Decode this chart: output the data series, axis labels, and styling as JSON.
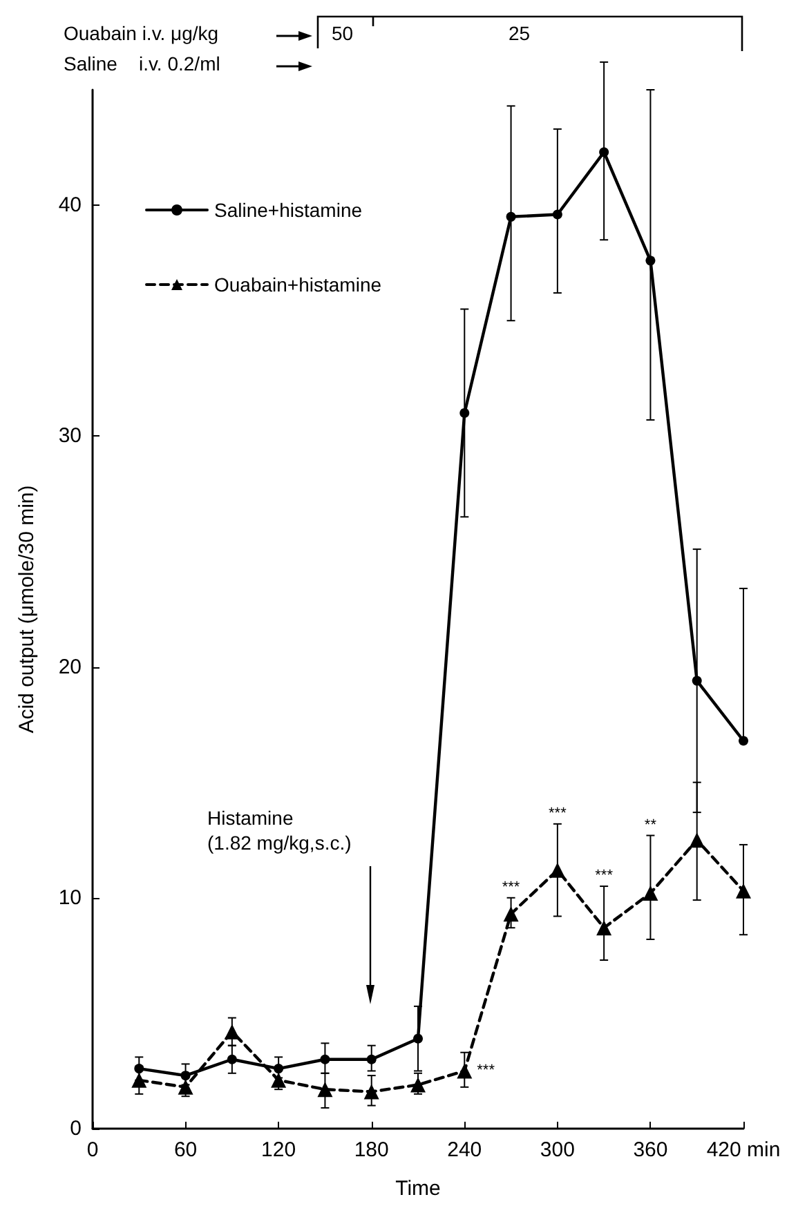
{
  "chart_data": {
    "type": "line",
    "xlabel": "Time",
    "ylabel": "Acid output (μmole/30 min)",
    "x": [
      30,
      60,
      90,
      120,
      150,
      180,
      210,
      240,
      270,
      300,
      330,
      360,
      390,
      420
    ],
    "xlim": [
      0,
      420
    ],
    "ylim": [
      0,
      45
    ],
    "xticks": [
      0,
      60,
      120,
      180,
      240,
      300,
      360,
      {
        "value": 420,
        "label": "420 min"
      }
    ],
    "yticks": [
      0,
      10,
      20,
      30,
      40
    ],
    "grid": false,
    "legend": "top left",
    "series": [
      {
        "name": "Saline+histamine",
        "color": "#000000",
        "marker": "circle",
        "line_style": "solid",
        "values": [
          2.6,
          2.3,
          3.0,
          2.6,
          3.0,
          3.0,
          3.9,
          31.0,
          39.5,
          39.6,
          42.3,
          37.6,
          19.4,
          16.8
        ],
        "errors": [
          [
            2.1,
            3.1
          ],
          [
            1.9,
            2.8
          ],
          [
            2.4,
            3.6
          ],
          [
            2.2,
            3.1
          ],
          [
            2.4,
            3.7
          ],
          [
            2.5,
            3.6
          ],
          [
            2.5,
            5.3
          ],
          [
            26.5,
            35.5
          ],
          [
            35.0,
            44.3
          ],
          [
            36.2,
            43.3
          ],
          [
            38.5,
            46.2
          ],
          [
            30.7,
            45.0
          ],
          [
            13.7,
            25.1
          ],
          [
            16.8,
            23.4
          ]
        ]
      },
      {
        "name": "Ouabain+histamine",
        "color": "#000000",
        "marker": "triangle",
        "line_style": "dashed",
        "values": [
          2.1,
          1.8,
          4.2,
          2.1,
          1.7,
          1.6,
          1.9,
          2.5,
          9.3,
          11.2,
          8.7,
          10.2,
          12.5,
          10.3
        ],
        "errors": [
          [
            1.5,
            2.7
          ],
          [
            1.4,
            2.4
          ],
          [
            3.6,
            4.8
          ],
          [
            1.7,
            2.6
          ],
          [
            0.9,
            2.4
          ],
          [
            1.0,
            2.3
          ],
          [
            1.5,
            2.4
          ],
          [
            1.8,
            3.3
          ],
          [
            8.7,
            10.0
          ],
          [
            9.2,
            13.2
          ],
          [
            7.3,
            10.5
          ],
          [
            8.2,
            12.7
          ],
          [
            9.9,
            15.0
          ],
          [
            8.4,
            12.3
          ]
        ]
      }
    ],
    "annotations": [
      "Ouabain i.v. μg/kg",
      "Saline    i.v. 0.2/ml",
      "50",
      "25",
      "Histamine\n(1.82 mg/kg,s.c.)",
      {
        "text": "***",
        "x": 240,
        "y": 2.5
      },
      {
        "text": "***",
        "x": 270,
        "y": 10.0
      },
      {
        "text": "***",
        "x": 300,
        "y": 13.2
      },
      {
        "text": "***",
        "x": 330,
        "y": 10.5
      },
      {
        "text": "**",
        "x": 360,
        "y": 12.7
      }
    ]
  }
}
